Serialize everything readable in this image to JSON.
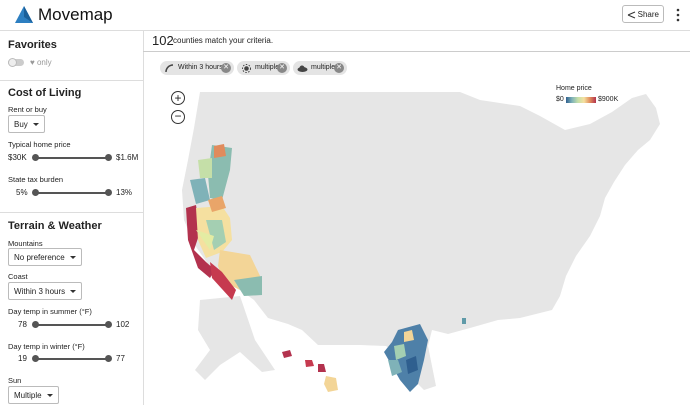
{
  "header": {
    "title": "Movemap",
    "share": "Share"
  },
  "sidebar": {
    "favorites": {
      "title": "Favorites",
      "toggle_label": "only"
    },
    "cost_of_living": {
      "title": "Cost of Living",
      "rent_or_buy": {
        "label": "Rent or buy",
        "value": "Buy"
      },
      "home_price": {
        "label": "Typical home price",
        "min": "$30K",
        "max": "$1.6M"
      },
      "tax": {
        "label": "State tax burden",
        "min": "5%",
        "max": "13%"
      }
    },
    "terrain": {
      "title": "Terrain & Weather",
      "mountains": {
        "label": "Mountains",
        "value": "No preference"
      },
      "coast": {
        "label": "Coast",
        "value": "Within 3 hours"
      },
      "summer": {
        "label": "Day temp in summer (°F)",
        "min": "78",
        "max": "102"
      },
      "winter": {
        "label": "Day temp in winter (°F)",
        "min": "19",
        "max": "77"
      },
      "sun": {
        "label": "Sun",
        "value": "Multiple"
      }
    }
  },
  "main": {
    "count": "102",
    "count_text": "counties match your criteria.",
    "chips": [
      "Within 3 hours",
      "multiple",
      "multiple"
    ],
    "legend": {
      "title": "Home price",
      "min": "$0",
      "max": "$900K"
    }
  }
}
